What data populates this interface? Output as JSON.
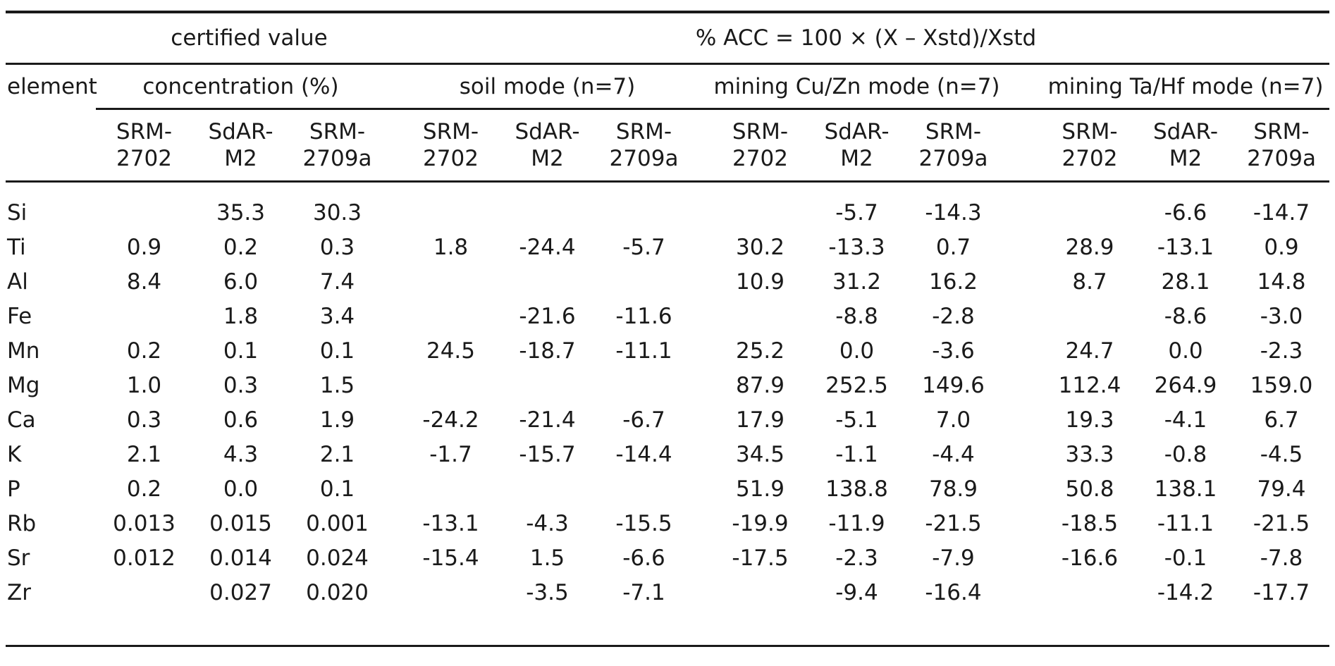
{
  "meta": {
    "background": "#ffffff",
    "text_color": "#1a1a1a",
    "rule_color": "#1a1a1a"
  },
  "table": {
    "top_header": {
      "certified_value": "certified value",
      "acc_formula": "% ACC = 100 × (X – Xstd)/Xstd"
    },
    "group_headers": {
      "element": "element",
      "concentration": "concentration (%)",
      "soil": "soil mode (n=7)",
      "mining_cuzn": "mining Cu/Zn mode (n=7)",
      "mining_tahf": "mining Ta/Hf mode (n=7)"
    },
    "standards": [
      {
        "l1": "SRM-",
        "l2": "2702"
      },
      {
        "l1": "SdAR-",
        "l2": "M2"
      },
      {
        "l1": "SRM-",
        "l2": "2709a"
      }
    ],
    "rows": [
      {
        "element": "Si",
        "conc": [
          "",
          "35.3",
          "30.3"
        ],
        "soil": [
          "",
          "",
          ""
        ],
        "cuzn": [
          "",
          "-5.7",
          "-14.3"
        ],
        "tahf": [
          "",
          "-6.6",
          "-14.7"
        ]
      },
      {
        "element": "Ti",
        "conc": [
          "0.9",
          "0.2",
          "0.3"
        ],
        "soil": [
          "1.8",
          "-24.4",
          "-5.7"
        ],
        "cuzn": [
          "30.2",
          "-13.3",
          "0.7"
        ],
        "tahf": [
          "28.9",
          "-13.1",
          "0.9"
        ]
      },
      {
        "element": "Al",
        "conc": [
          "8.4",
          "6.0",
          "7.4"
        ],
        "soil": [
          "",
          "",
          ""
        ],
        "cuzn": [
          "10.9",
          "31.2",
          "16.2"
        ],
        "tahf": [
          "8.7",
          "28.1",
          "14.8"
        ]
      },
      {
        "element": "Fe",
        "conc": [
          "",
          "1.8",
          "3.4"
        ],
        "soil": [
          "",
          "-21.6",
          "-11.6"
        ],
        "cuzn": [
          "",
          "-8.8",
          "-2.8"
        ],
        "tahf": [
          "",
          "-8.6",
          "-3.0"
        ]
      },
      {
        "element": "Mn",
        "conc": [
          "0.2",
          "0.1",
          "0.1"
        ],
        "soil": [
          "24.5",
          "-18.7",
          "-11.1"
        ],
        "cuzn": [
          "25.2",
          "0.0",
          "-3.6"
        ],
        "tahf": [
          "24.7",
          "0.0",
          "-2.3"
        ]
      },
      {
        "element": "Mg",
        "conc": [
          "1.0",
          "0.3",
          "1.5"
        ],
        "soil": [
          "",
          "",
          ""
        ],
        "cuzn": [
          "87.9",
          "252.5",
          "149.6"
        ],
        "tahf": [
          "112.4",
          "264.9",
          "159.0"
        ]
      },
      {
        "element": "Ca",
        "conc": [
          "0.3",
          "0.6",
          "1.9"
        ],
        "soil": [
          "-24.2",
          "-21.4",
          "-6.7"
        ],
        "cuzn": [
          "17.9",
          "-5.1",
          "7.0"
        ],
        "tahf": [
          "19.3",
          "-4.1",
          "6.7"
        ]
      },
      {
        "element": "K",
        "conc": [
          "2.1",
          "4.3",
          "2.1"
        ],
        "soil": [
          "-1.7",
          "-15.7",
          "-14.4"
        ],
        "cuzn": [
          "34.5",
          "-1.1",
          "-4.4"
        ],
        "tahf": [
          "33.3",
          "-0.8",
          "-4.5"
        ]
      },
      {
        "element": "P",
        "conc": [
          "0.2",
          "0.0",
          "0.1"
        ],
        "soil": [
          "",
          "",
          ""
        ],
        "cuzn": [
          "51.9",
          "138.8",
          "78.9"
        ],
        "tahf": [
          "50.8",
          "138.1",
          "79.4"
        ]
      },
      {
        "element": "Rb",
        "conc": [
          "0.013",
          "0.015",
          "0.001"
        ],
        "soil": [
          "-13.1",
          "-4.3",
          "-15.5"
        ],
        "cuzn": [
          "-19.9",
          "-11.9",
          "-21.5"
        ],
        "tahf": [
          "-18.5",
          "-11.1",
          "-21.5"
        ]
      },
      {
        "element": "Sr",
        "conc": [
          "0.012",
          "0.014",
          "0.024"
        ],
        "soil": [
          "-15.4",
          "1.5",
          "-6.6"
        ],
        "cuzn": [
          "-17.5",
          "-2.3",
          "-7.9"
        ],
        "tahf": [
          "-16.6",
          "-0.1",
          "-7.8"
        ]
      },
      {
        "element": "Zr",
        "conc": [
          "",
          "0.027",
          "0.020"
        ],
        "soil": [
          "",
          "-3.5",
          "-7.1"
        ],
        "cuzn": [
          "",
          "-9.4",
          "-16.4"
        ],
        "tahf": [
          "",
          "-14.2",
          "-17.7"
        ]
      }
    ]
  }
}
